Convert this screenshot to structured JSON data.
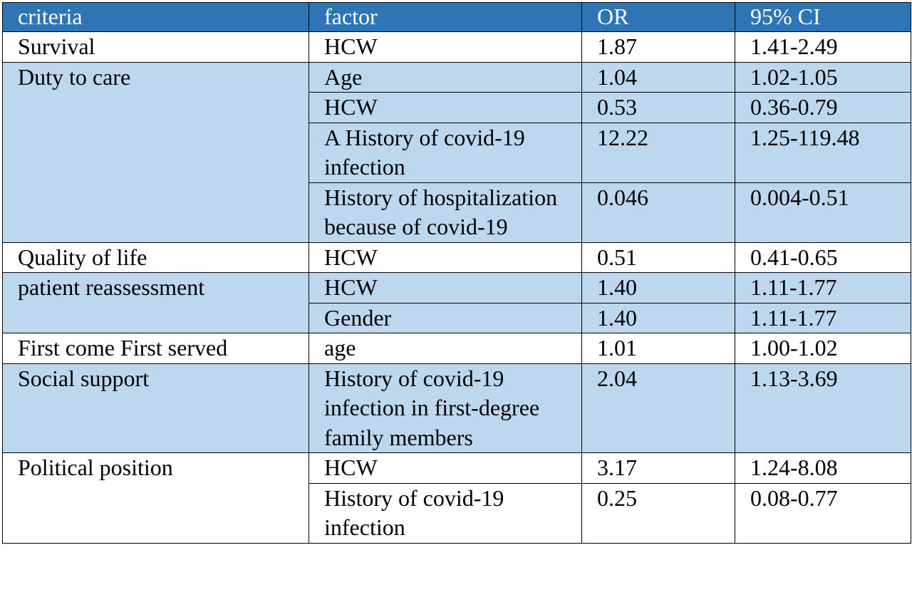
{
  "table": {
    "headers": [
      "criteria",
      "factor",
      "OR",
      "95% CI"
    ],
    "rows": [
      {
        "criteria": "Survival",
        "factor": "HCW",
        "or": "1.87",
        "ci": "1.41-2.49"
      },
      {
        "criteria": "Duty to care",
        "factor": "Age",
        "or": "1.04",
        "ci": "1.02-1.05"
      },
      {
        "criteria": "",
        "factor": "HCW",
        "or": "0.53",
        "ci": "0.36-0.79"
      },
      {
        "criteria": "",
        "factor": "A History of covid-19 infection",
        "or": "12.22",
        "ci": "1.25-119.48"
      },
      {
        "criteria": "",
        "factor": "History of hospitalization because of covid-19",
        "or": "0.046",
        "ci": "0.004-0.51"
      },
      {
        "criteria": "Quality of life",
        "factor": "HCW",
        "or": "0.51",
        "ci": "0.41-0.65"
      },
      {
        "criteria": "patient reassessment",
        "factor": "HCW",
        "or": "1.40",
        "ci": "1.11-1.77"
      },
      {
        "criteria": "",
        "factor": "Gender",
        "or": "1.40",
        "ci": "1.11-1.77"
      },
      {
        "criteria": "First come First served",
        "factor": "age",
        "or": "1.01",
        "ci": "1.00-1.02"
      },
      {
        "criteria": "Social support",
        "factor": "History of covid-19 infection in first-degree family members",
        "or": "2.04",
        "ci": "1.13-3.69"
      },
      {
        "criteria": "Political position",
        "factor": "HCW",
        "or": "3.17",
        "ci": "1.24-8.08"
      },
      {
        "criteria": "",
        "factor": "History of covid-19 infection",
        "or": "0.25",
        "ci": "0.08-0.77"
      }
    ]
  },
  "colors": {
    "header_bg": "#2e75b6",
    "header_text": "#ffffff",
    "shade_bg": "#bdd7ee",
    "plain_bg": "#ffffff",
    "border": "#000000"
  }
}
